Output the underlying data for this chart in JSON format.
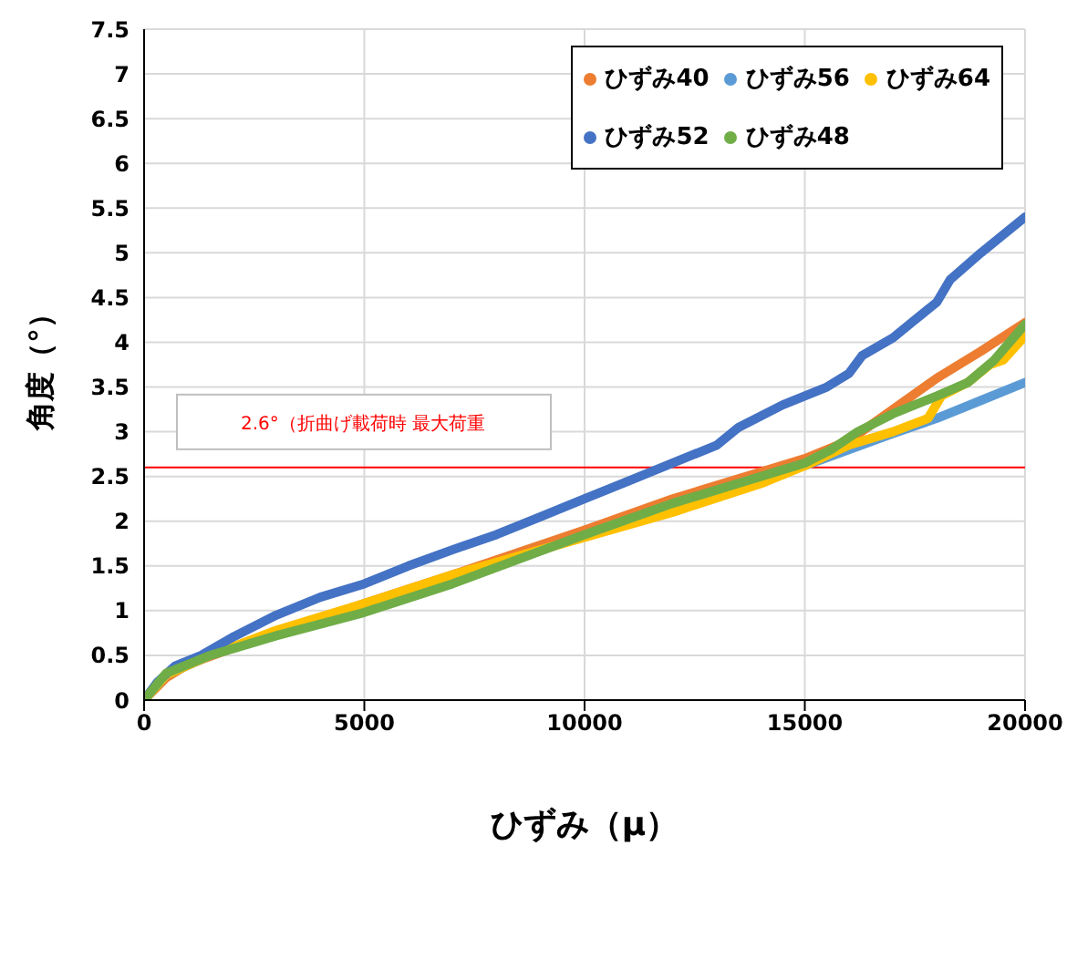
{
  "chart_data": {
    "type": "line",
    "xlabel": "ひずみ（μ）",
    "ylabel": "角度（°）",
    "xlim": [
      0,
      20000
    ],
    "xticks": [
      0,
      5000,
      10000,
      15000,
      20000
    ],
    "ylim": [
      0,
      7.5
    ],
    "yticks": [
      0,
      0.5,
      1,
      1.5,
      2,
      2.5,
      3,
      3.5,
      4,
      4.5,
      5,
      5.5,
      6,
      6.5,
      7,
      7.5
    ],
    "grid": true,
    "legend": "top right",
    "ref_lines": [
      {
        "axis": "y",
        "value": 2.6,
        "label": "2.6°（折曲げ載荷時  最大荷重",
        "color": "#ff0000"
      }
    ],
    "series": [
      {
        "name": "ひずみ40",
        "color": "#ed7d31",
        "x": [
          0,
          500,
          1000,
          2000,
          3000,
          5000,
          7000,
          10000,
          12000,
          14000,
          15000,
          16000,
          17000,
          18000,
          19000,
          20000
        ],
        "values": [
          0,
          0.25,
          0.4,
          0.58,
          0.75,
          1.08,
          1.4,
          1.9,
          2.25,
          2.55,
          2.7,
          2.9,
          3.25,
          3.6,
          3.9,
          4.22
        ]
      },
      {
        "name": "ひずみ56",
        "color": "#5b9bd5",
        "x": [
          0,
          500,
          1500,
          3000,
          5000,
          7000,
          10000,
          12000,
          14000,
          15000,
          16000,
          17000,
          18000,
          19000,
          20000
        ],
        "values": [
          0,
          0.28,
          0.5,
          0.75,
          null,
          null,
          null,
          null,
          null,
          2.62,
          2.8,
          2.98,
          3.15,
          3.35,
          3.55
        ]
      },
      {
        "name": "ひずみ64",
        "color": "#ffc000",
        "x": [
          0,
          500,
          1500,
          3000,
          5000,
          7000,
          10000,
          12000,
          14000,
          15000,
          16000,
          17000,
          17800,
          18100,
          18700,
          19200,
          19500,
          20000
        ],
        "values": [
          0,
          0.28,
          0.5,
          0.78,
          1.08,
          1.4,
          1.82,
          2.1,
          2.42,
          2.62,
          2.85,
          3.0,
          3.15,
          3.4,
          3.55,
          3.75,
          3.8,
          4.07
        ]
      },
      {
        "name": "ひずみ52",
        "color": "#4472c4",
        "x": [
          0,
          300,
          700,
          1300,
          2000,
          3000,
          4000,
          5000,
          6000,
          7000,
          8000,
          9000,
          10000,
          11000,
          12000,
          13000,
          13500,
          14500,
          15500,
          16000,
          16300,
          17000,
          17500,
          18000,
          18300,
          19000,
          20000
        ],
        "values": [
          0,
          0.2,
          0.38,
          0.5,
          0.7,
          0.95,
          1.15,
          1.3,
          1.5,
          1.68,
          1.85,
          2.05,
          2.25,
          2.45,
          2.65,
          2.85,
          3.05,
          3.3,
          3.5,
          3.65,
          3.85,
          4.05,
          4.25,
          4.45,
          4.7,
          5.0,
          5.4
        ]
      },
      {
        "name": "ひずみ48",
        "color": "#70ad47",
        "x": [
          0,
          500,
          1500,
          3000,
          5000,
          7000,
          10000,
          12000,
          14000,
          15000,
          15600,
          16200,
          17000,
          18000,
          18700,
          19300,
          20000
        ],
        "values": [
          0,
          0.3,
          0.5,
          0.72,
          0.98,
          1.3,
          1.85,
          2.2,
          2.5,
          2.65,
          2.8,
          3.0,
          3.2,
          3.4,
          3.55,
          3.8,
          4.2
        ]
      }
    ]
  }
}
